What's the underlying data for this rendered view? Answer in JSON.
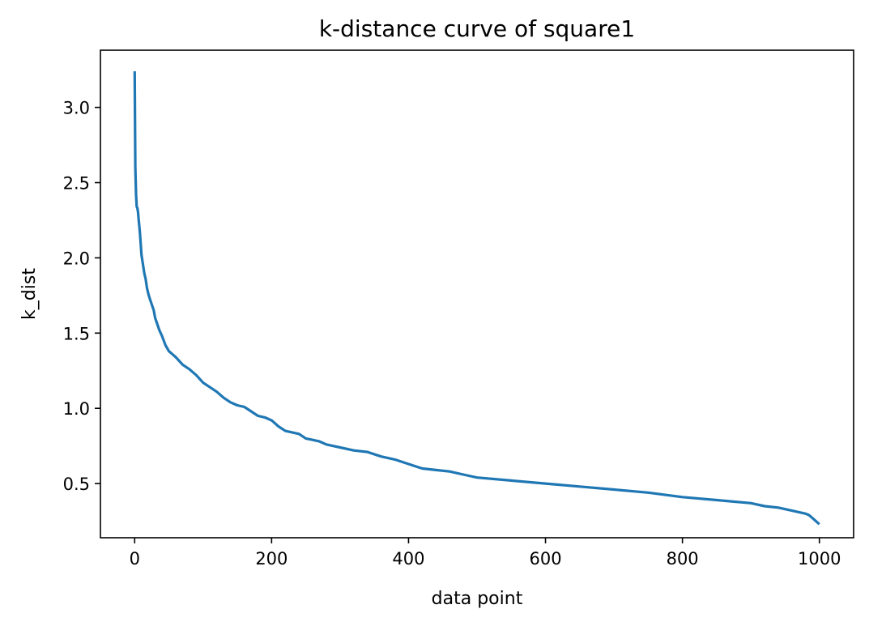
{
  "chart_data": {
    "type": "line",
    "title": "k-distance curve of square1",
    "xlabel": "data point",
    "ylabel": "k_dist",
    "xlim": [
      -50,
      1050
    ],
    "ylim": [
      0.14,
      3.38
    ],
    "xticks": [
      0,
      200,
      400,
      600,
      800,
      1000
    ],
    "yticks": [
      0.5,
      1.0,
      1.5,
      2.0,
      2.5,
      3.0
    ],
    "xtick_labels": [
      "0",
      "200",
      "400",
      "600",
      "800",
      "1000"
    ],
    "ytick_labels": [
      "0.5",
      "1.0",
      "1.5",
      "2.0",
      "2.5",
      "3.0"
    ],
    "grid": false,
    "legend": "none",
    "series": [
      {
        "color": "#1f77b4",
        "x": [
          0,
          1,
          2,
          3,
          4,
          5,
          6,
          7,
          8,
          10,
          12,
          14,
          16,
          18,
          20,
          22,
          25,
          28,
          30,
          33,
          36,
          40,
          45,
          50,
          55,
          60,
          70,
          80,
          90,
          100,
          110,
          120,
          130,
          140,
          150,
          160,
          170,
          180,
          190,
          200,
          210,
          220,
          230,
          240,
          250,
          260,
          270,
          280,
          290,
          300,
          320,
          340,
          360,
          380,
          400,
          420,
          440,
          460,
          480,
          500,
          550,
          600,
          650,
          700,
          750,
          800,
          850,
          900,
          920,
          940,
          960,
          970,
          980,
          985,
          990,
          995,
          1000
        ],
        "y": [
          3.24,
          2.6,
          2.42,
          2.34,
          2.33,
          2.3,
          2.25,
          2.2,
          2.15,
          2.02,
          1.96,
          1.9,
          1.86,
          1.8,
          1.76,
          1.73,
          1.69,
          1.65,
          1.6,
          1.56,
          1.52,
          1.48,
          1.42,
          1.38,
          1.36,
          1.34,
          1.29,
          1.26,
          1.22,
          1.17,
          1.14,
          1.11,
          1.07,
          1.04,
          1.02,
          1.01,
          0.98,
          0.95,
          0.94,
          0.92,
          0.88,
          0.85,
          0.84,
          0.83,
          0.8,
          0.79,
          0.78,
          0.76,
          0.75,
          0.74,
          0.72,
          0.71,
          0.68,
          0.66,
          0.63,
          0.6,
          0.59,
          0.58,
          0.56,
          0.54,
          0.52,
          0.5,
          0.48,
          0.46,
          0.44,
          0.41,
          0.39,
          0.37,
          0.35,
          0.34,
          0.32,
          0.31,
          0.3,
          0.29,
          0.27,
          0.25,
          0.23
        ]
      }
    ]
  }
}
